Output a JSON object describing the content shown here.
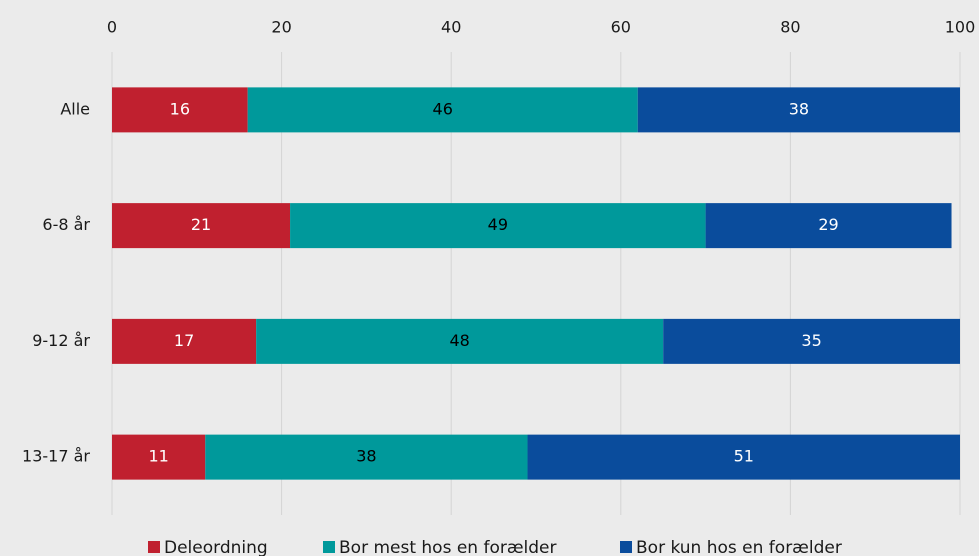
{
  "chart_data": {
    "type": "stacked_barh",
    "categories": [
      "Alle",
      "6-8 år",
      "9-12 år",
      "13-17 år"
    ],
    "series": [
      {
        "name": "Deleordning",
        "color": "#c0202f",
        "label_color": "#ffffff",
        "values": [
          16,
          21,
          17,
          11
        ]
      },
      {
        "name": "Bor mest hos en forælder",
        "color": "#00999b",
        "label_color": "#000000",
        "values": [
          46,
          49,
          48,
          38
        ]
      },
      {
        "name": "Bor kun hos en forælder",
        "color": "#0a4c9c",
        "label_color": "#ffffff",
        "values": [
          38,
          29,
          35,
          51
        ]
      }
    ],
    "xlim": [
      0,
      100
    ],
    "xticks": [
      0,
      20,
      40,
      60,
      80,
      100
    ],
    "grid": true,
    "legend": "bottom"
  }
}
